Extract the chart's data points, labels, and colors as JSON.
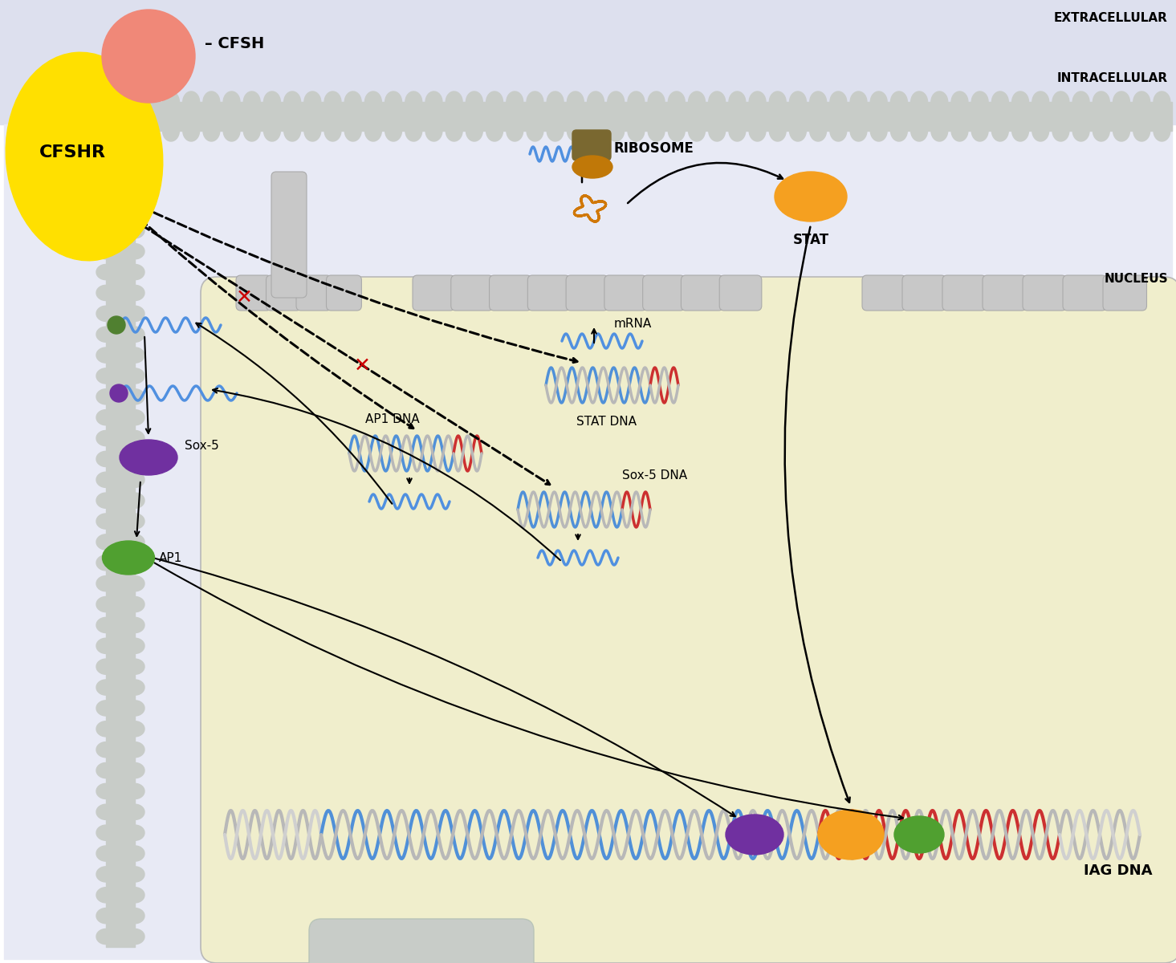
{
  "fig_width": 14.65,
  "fig_height": 12.0,
  "bg_white": "#ffffff",
  "bg_extracellular": "#dde0ee",
  "bg_intracellular": "#e8eaf5",
  "bg_nucleus": "#f0eecc",
  "membrane_color": "#c8ccc8",
  "text_color": "#000000",
  "cfsh_color": "#f08878",
  "cfshr_color": "#ffe000",
  "stat_color": "#f5a020",
  "mrna_color": "#5090e0",
  "sox5_protein_color": "#7030a0",
  "ap1_protein_color": "#50a030",
  "dna_blue": "#5090d8",
  "dna_red": "#cc3030",
  "dna_gray": "#b8b8b8",
  "arrow_color": "#000000",
  "red_x_color": "#cc0000",
  "labels": {
    "extracellular": "EXTRACELLULAR",
    "intracellular": "INTRACELLULAR",
    "nucleus": "NUCLEUS",
    "cfsh": "CFSH",
    "cfshr": "CFSHR",
    "ribosome": "RIBOSOME",
    "stat": "STAT",
    "mrna": "mRNA",
    "stat_dna": "STAT DNA",
    "ap1_dna": "AP1 DNA",
    "sox5_dna": "Sox-5 DNA",
    "iag_dna": "IAG DNA",
    "sox5": "Sox-5",
    "ap1": "AP1"
  }
}
